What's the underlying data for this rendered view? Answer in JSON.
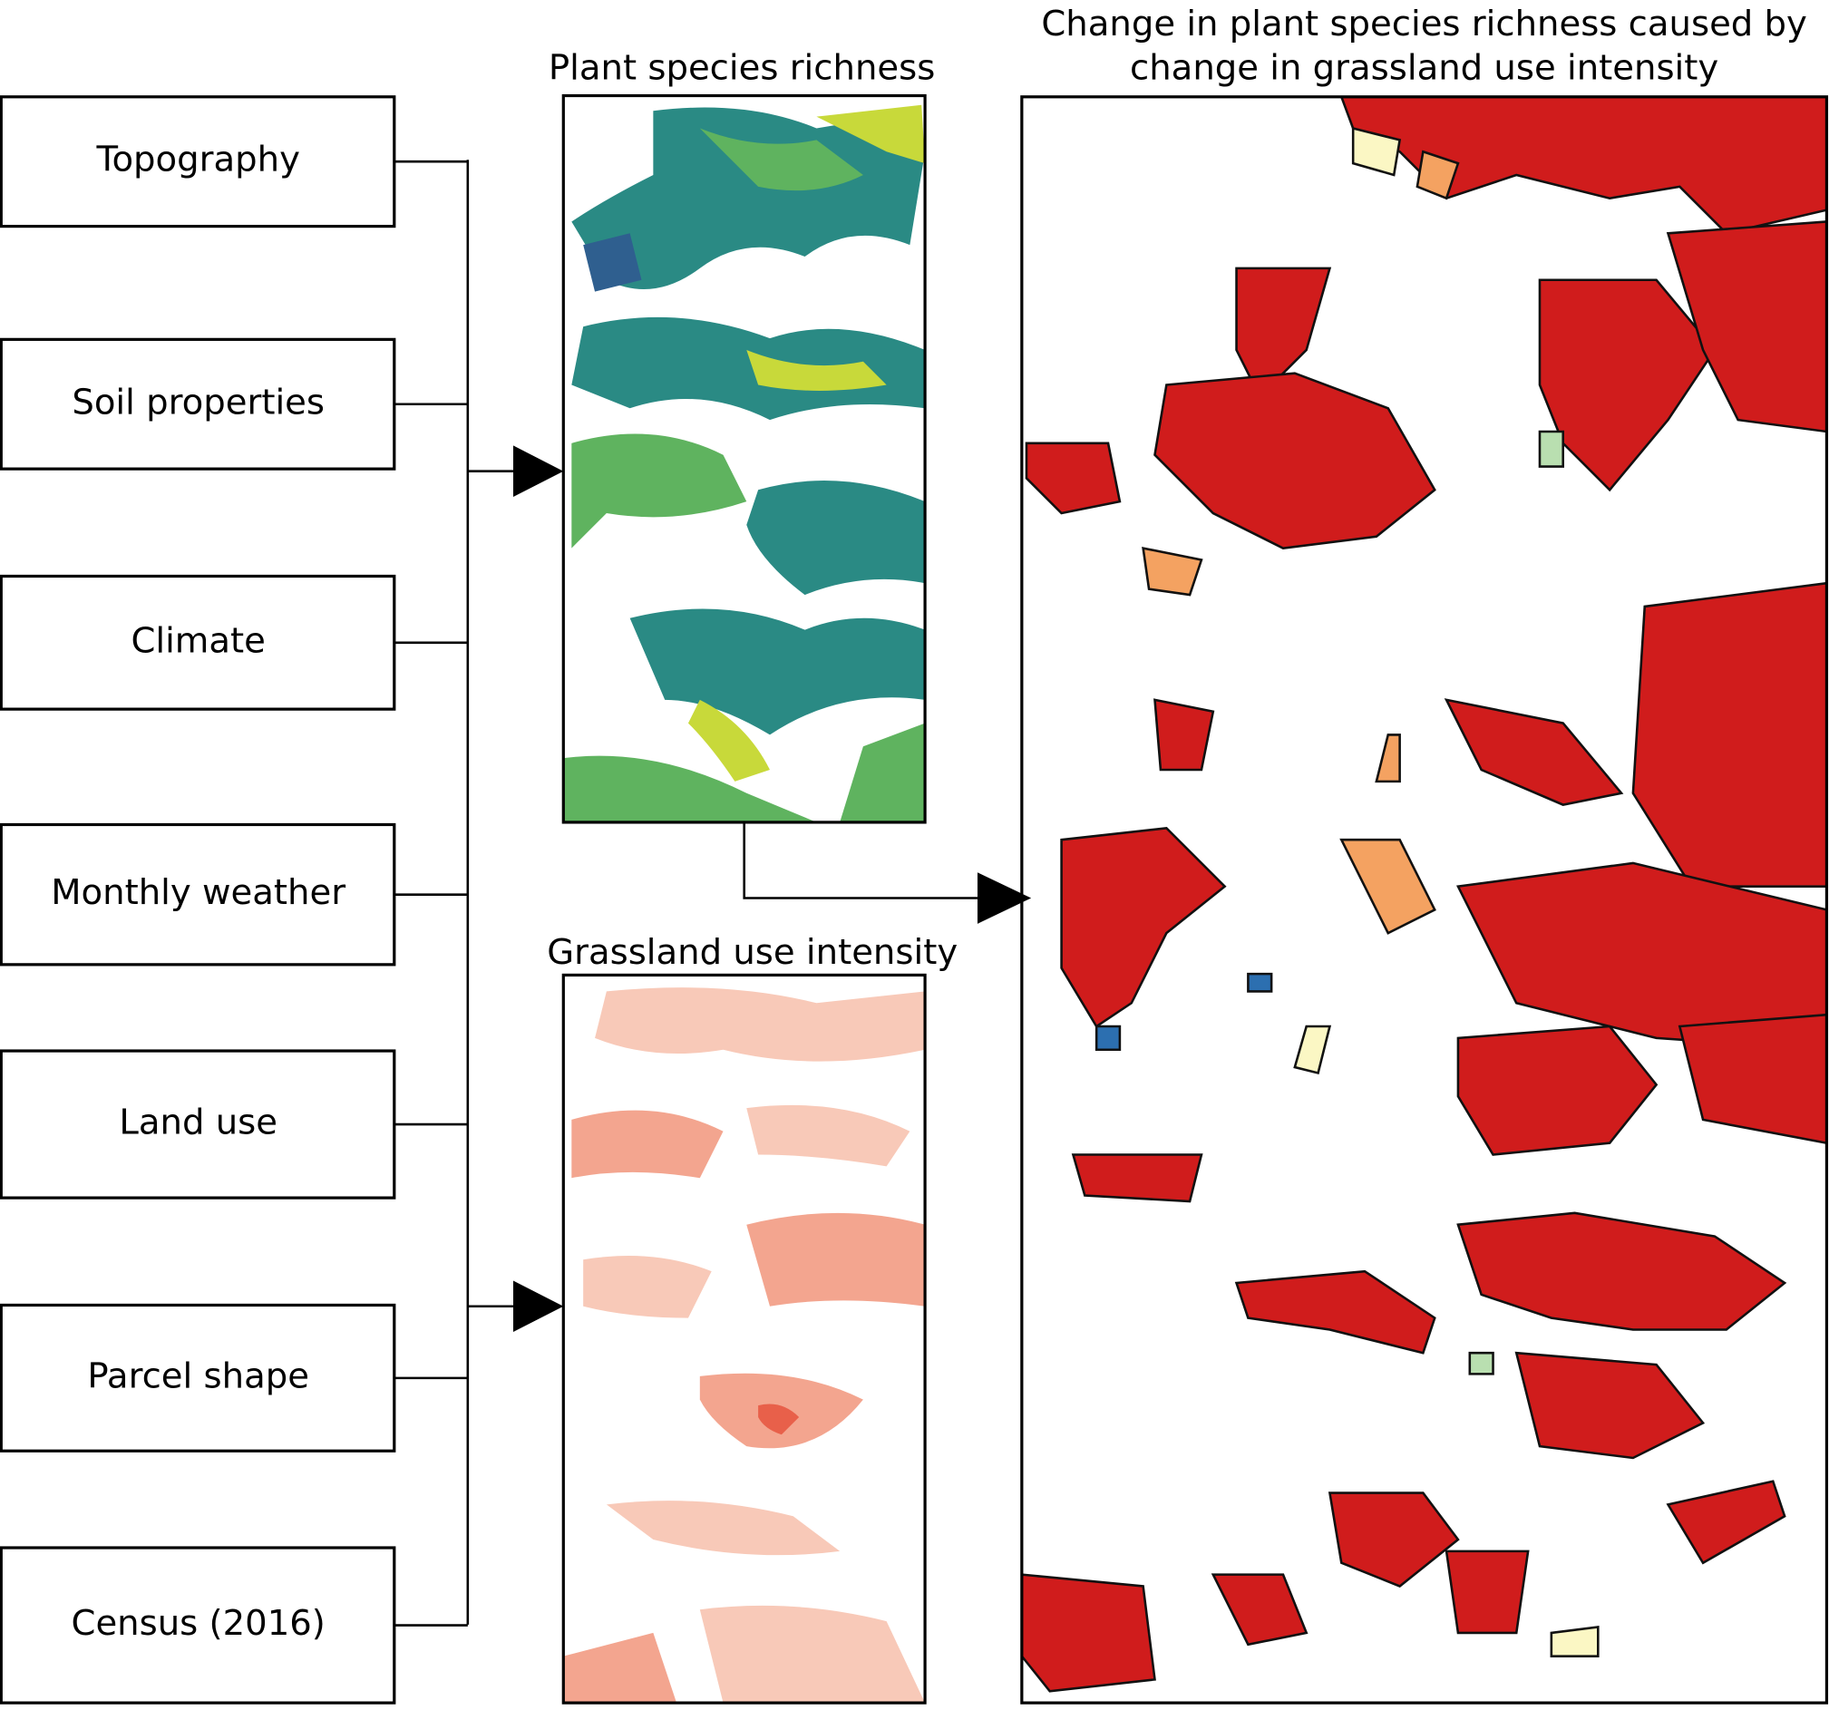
{
  "inputs": [
    "Topography",
    "Soil properties",
    "Climate",
    "Monthly weather",
    "Land use",
    "Parcel shape",
    "Census (2016)"
  ],
  "maps": {
    "richness": {
      "title": "Plant species richness"
    },
    "intensity": {
      "title": "Grassland use intensity"
    },
    "change": {
      "title_lines": [
        "Change in plant species richness caused by",
        "change in grassland use intensity"
      ]
    }
  }
}
